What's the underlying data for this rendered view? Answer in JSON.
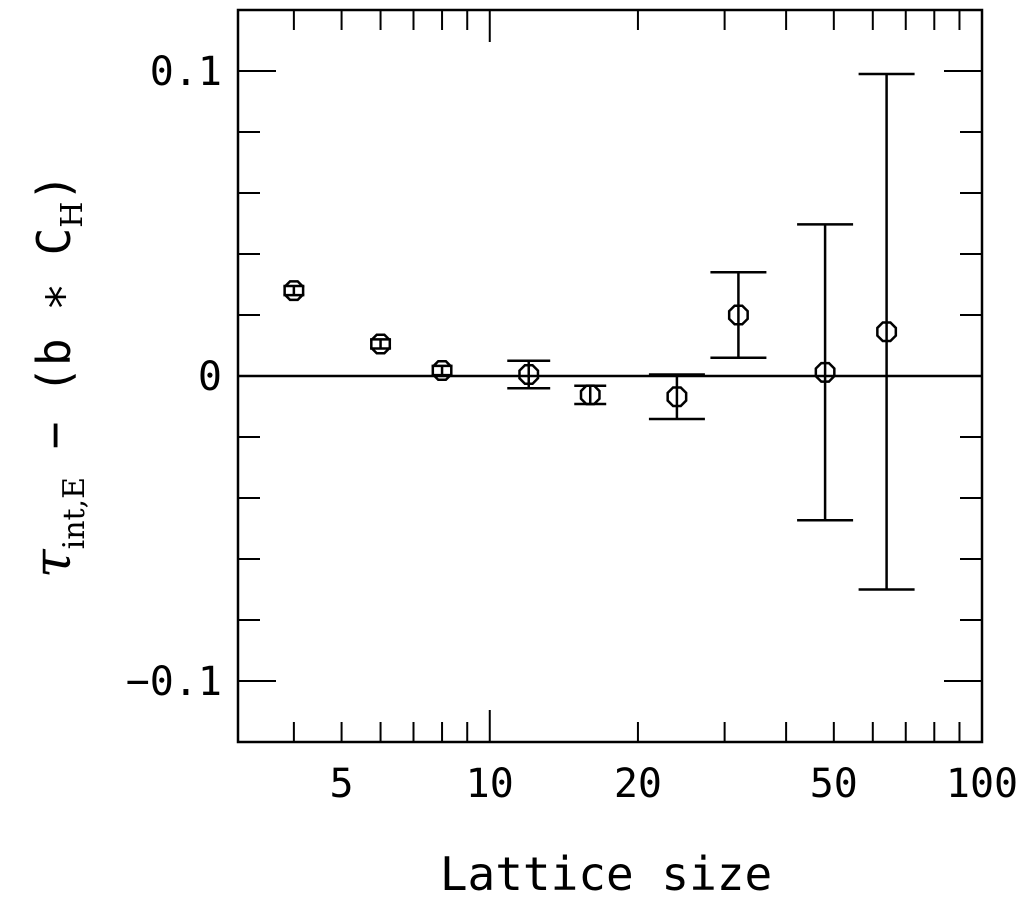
{
  "chart_data": {
    "type": "scatter",
    "xlabel": "Lattice size",
    "ylabel": {
      "symbol": "τ",
      "subscript": "int,E",
      "rest_prefix": " − (b ∗ C",
      "rest_subscript": "H",
      "rest_suffix": ")"
    },
    "x_scale": "log",
    "xlim": [
      3.08,
      100
    ],
    "ylim": [
      -0.12,
      0.12
    ],
    "x_ticks": [
      {
        "value": 5,
        "label": "5"
      },
      {
        "value": 10,
        "label": "10"
      },
      {
        "value": 20,
        "label": "20"
      },
      {
        "value": 50,
        "label": "50"
      },
      {
        "value": 100,
        "label": "100"
      }
    ],
    "y_ticks": [
      {
        "value": 0.1,
        "label": "0.1"
      },
      {
        "value": 0,
        "label": "0"
      },
      {
        "value": -0.1,
        "label": "−0.1"
      }
    ],
    "reference_line": 0,
    "grid": false,
    "points": [
      {
        "x": 4,
        "y": 0.028,
        "err": 0.0015
      },
      {
        "x": 6,
        "y": 0.0105,
        "err": 0.0015
      },
      {
        "x": 8,
        "y": 0.0018,
        "err": 0.0015
      },
      {
        "x": 12,
        "y": 0.0005,
        "err": 0.0045
      },
      {
        "x": 16,
        "y": -0.0062,
        "err": 0.003
      },
      {
        "x": 24,
        "y": -0.0068,
        "err": 0.0073
      },
      {
        "x": 32,
        "y": 0.02,
        "err": 0.014
      },
      {
        "x": 48,
        "y": 0.0012,
        "err": 0.0485
      },
      {
        "x": 64,
        "y": 0.0145,
        "err": 0.0845
      }
    ]
  }
}
